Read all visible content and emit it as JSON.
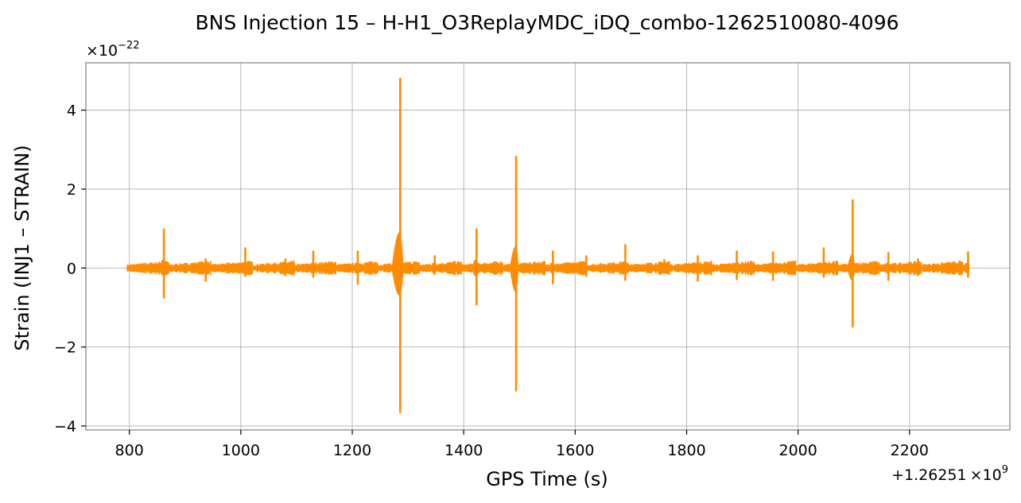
{
  "chart_data": {
    "type": "line",
    "title": "BNS Injection 15 – H-H1_O3ReplayMDC_iDQ_combo-1262510080-4096",
    "xlabel": "GPS Time (s)",
    "ylabel": "Strain (INJ1 – STRAIN)",
    "x_offset_text": {
      "prefix": "+1.26251",
      "mult": "×10",
      "exp": "9"
    },
    "y_scale_text": {
      "mult": "×10",
      "exp": "−22"
    },
    "xlim": [
      722,
      2380
    ],
    "ylim": [
      -4.1,
      5.2
    ],
    "x_ticks": [
      800,
      1000,
      1200,
      1400,
      1600,
      1800,
      2000,
      2200
    ],
    "x_tick_labels": [
      "800",
      "1000",
      "1200",
      "1400",
      "1600",
      "1800",
      "2000",
      "2200"
    ],
    "y_ticks": [
      -4,
      -2,
      0,
      2,
      4
    ],
    "y_tick_labels": [
      "−4",
      "−2",
      "0",
      "2",
      "4"
    ],
    "grid": true,
    "color": "#ff8c00",
    "x_range": [
      796,
      2306
    ],
    "baseline_band": [
      -0.1,
      0.1
    ],
    "spikes": [
      {
        "x": 862,
        "max": 0.98,
        "min": -0.75
      },
      {
        "x": 937,
        "max": 0.22,
        "min": -0.32
      },
      {
        "x": 1008,
        "max": 0.5,
        "min": -0.2
      },
      {
        "x": 1080,
        "max": 0.22,
        "min": -0.18
      },
      {
        "x": 1130,
        "max": 0.42,
        "min": -0.22
      },
      {
        "x": 1210,
        "max": 0.42,
        "min": -0.4
      },
      {
        "x": 1286,
        "max": 4.8,
        "min": -3.65
      },
      {
        "x": 1348,
        "max": 0.3,
        "min": -0.15
      },
      {
        "x": 1423,
        "max": 0.98,
        "min": -0.92
      },
      {
        "x": 1494,
        "max": 2.82,
        "min": -3.1
      },
      {
        "x": 1560,
        "max": 0.42,
        "min": -0.38
      },
      {
        "x": 1620,
        "max": 0.3,
        "min": -0.2
      },
      {
        "x": 1690,
        "max": 0.58,
        "min": -0.3
      },
      {
        "x": 1760,
        "max": 0.2,
        "min": -0.12
      },
      {
        "x": 1820,
        "max": 0.3,
        "min": -0.32
      },
      {
        "x": 1890,
        "max": 0.42,
        "min": -0.28
      },
      {
        "x": 1955,
        "max": 0.4,
        "min": -0.3
      },
      {
        "x": 2046,
        "max": 0.5,
        "min": -0.22
      },
      {
        "x": 2098,
        "max": 1.72,
        "min": -1.48
      },
      {
        "x": 2162,
        "max": 0.38,
        "min": -0.3
      },
      {
        "x": 2215,
        "max": 0.22,
        "min": -0.18
      },
      {
        "x": 2305,
        "max": 0.4,
        "min": -0.22
      }
    ]
  }
}
